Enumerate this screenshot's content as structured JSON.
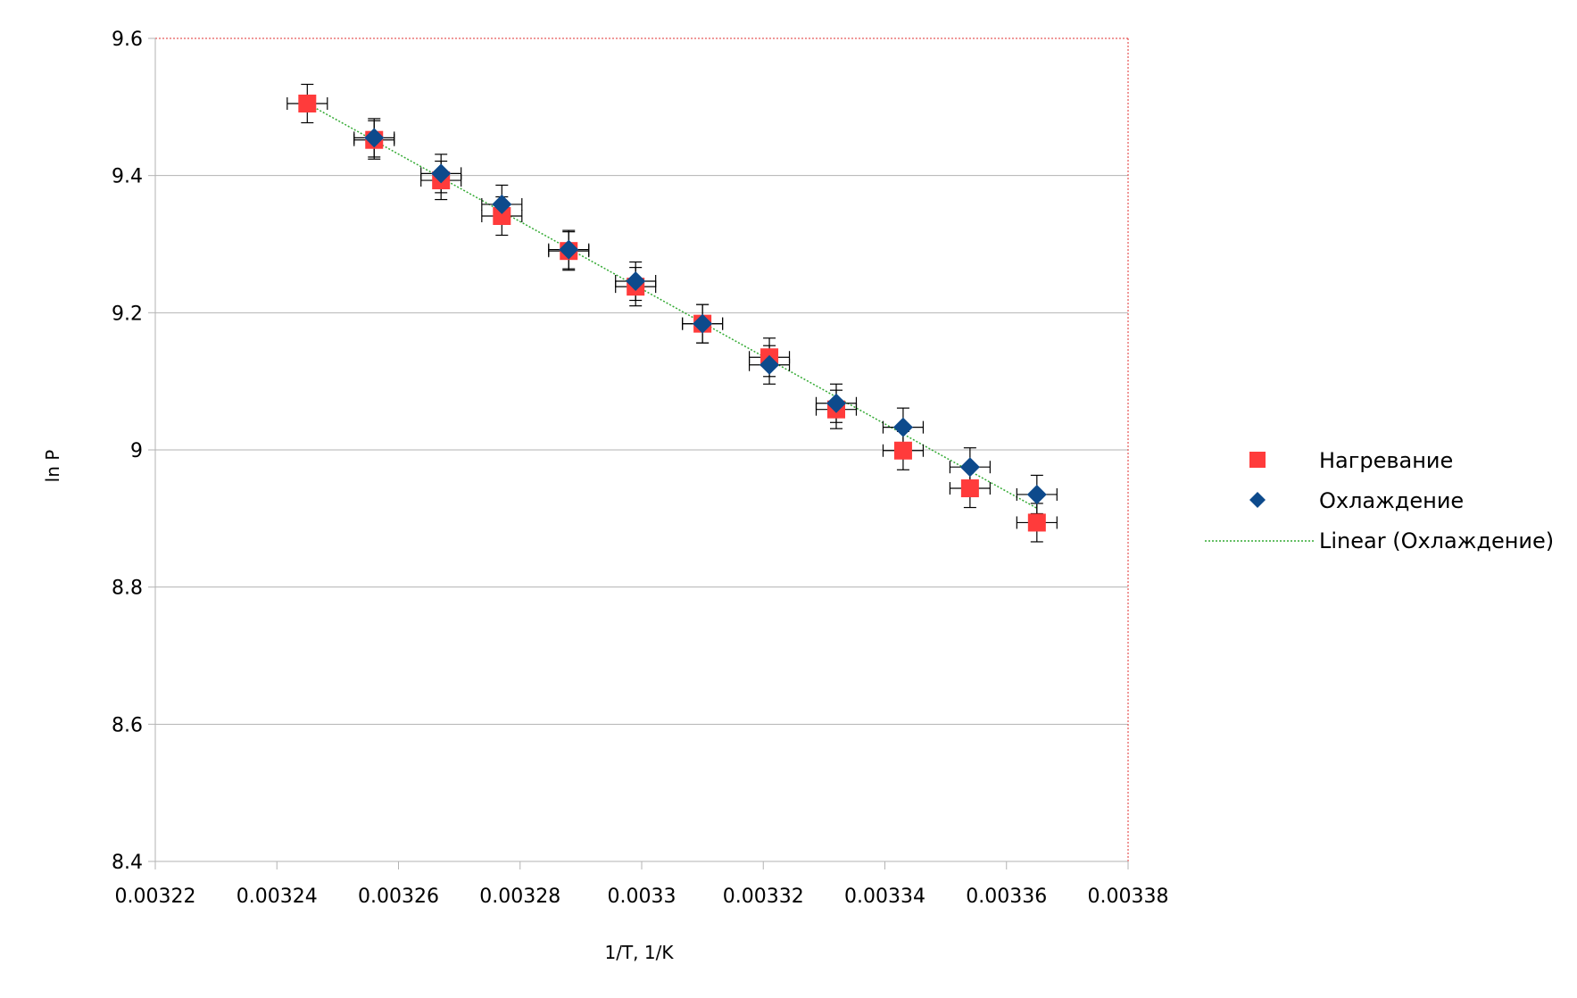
{
  "chart_data": {
    "type": "scatter",
    "xlabel": "1/T, 1/K",
    "ylabel": "ln P",
    "xlim": [
      0.00322,
      0.00338
    ],
    "ylim": [
      8.4,
      9.6
    ],
    "x_ticks": [
      "0.00322",
      "0.00324",
      "0.00326",
      "0.00328",
      "0.0033",
      "0.00332",
      "0.00334",
      "0.00336",
      "0.00338"
    ],
    "y_ticks": [
      "8.4",
      "8.6",
      "8.8",
      "9",
      "9.2",
      "9.4",
      "9.6"
    ],
    "grid": "horizontal",
    "legend_position": "right",
    "series": [
      {
        "name": "Нагревание",
        "marker": "square",
        "color": "#ff3b3b",
        "x": [
          0.003245,
          0.003256,
          0.003267,
          0.003277,
          0.003288,
          0.003299,
          0.00331,
          0.003321,
          0.003332,
          0.003343,
          0.003354,
          0.003365
        ],
        "y": [
          9.505,
          9.452,
          9.393,
          9.341,
          9.29,
          9.238,
          9.184,
          9.135,
          9.059,
          8.999,
          8.944,
          8.894
        ],
        "y_err": 0.028,
        "x_err": 3.3e-06
      },
      {
        "name": "Охлаждение",
        "marker": "diamond",
        "color": "#0d4a8c",
        "x": [
          0.003256,
          0.003267,
          0.003277,
          0.003288,
          0.003299,
          0.00331,
          0.003321,
          0.003332,
          0.003343,
          0.003354,
          0.003365
        ],
        "y": [
          9.455,
          9.403,
          9.358,
          9.292,
          9.246,
          9.184,
          9.124,
          9.068,
          9.033,
          8.975,
          8.935
        ],
        "y_err": 0.028,
        "x_err": 3.3e-06
      }
    ],
    "trendline": {
      "name": "Linear (Охлаждение)",
      "color": "#33aa33",
      "x": [
        0.003245,
        0.003365
      ],
      "y": [
        9.505,
        8.915
      ]
    }
  }
}
